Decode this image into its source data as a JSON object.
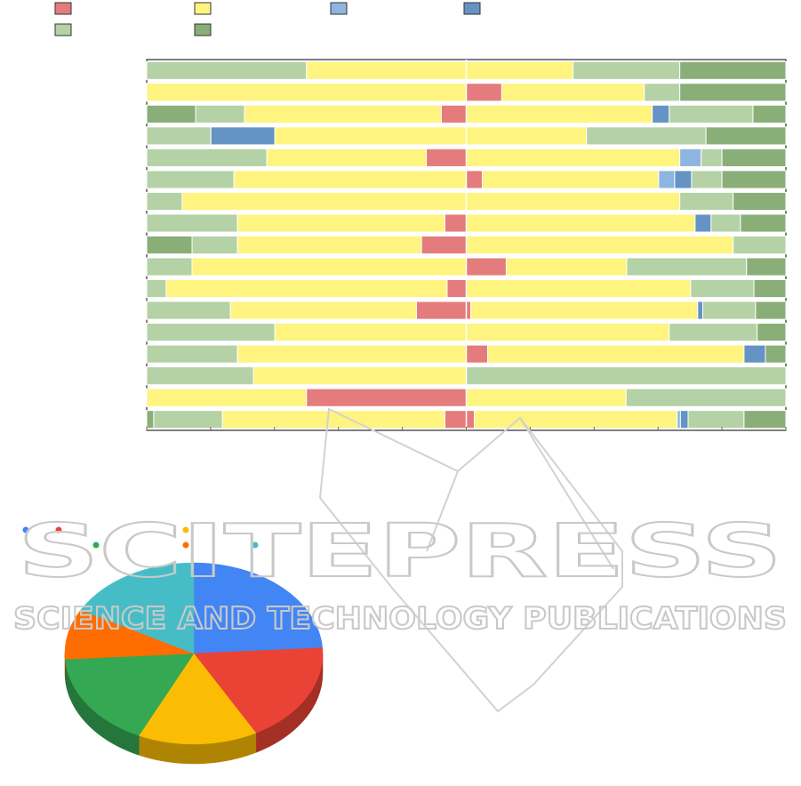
{
  "chart_data": [
    {
      "type": "bar",
      "stacked": true,
      "orientation": "horizontal",
      "diverging": true,
      "xlim": [
        -1,
        1
      ],
      "grid": false,
      "legend_position": "top-left",
      "series": [
        {
          "key": "s1",
          "color": "#e47c7d"
        },
        {
          "key": "s2",
          "color": "#fef47f"
        },
        {
          "key": "s3",
          "color": "#8eb5e0"
        },
        {
          "key": "s4",
          "color": "#6593c4"
        },
        {
          "key": "s5",
          "color": "#b5d1a6"
        },
        {
          "key": "s6",
          "color": "#8aae77"
        }
      ],
      "rows": [
        {
          "segments": [
            [
              "s5",
              -1.0
            ],
            [
              "s2",
              -0.5
            ],
            [
              "s2",
              0.0
            ],
            [
              "s5",
              0.334
            ],
            [
              "s6",
              0.668
            ],
            [
              "s6",
              1.0
            ]
          ]
        },
        {
          "segments": [
            [
              "s2",
              -1.0
            ],
            [
              "s1",
              0.0
            ],
            [
              "s2",
              0.111
            ],
            [
              "s5",
              0.557
            ],
            [
              "s6",
              0.668
            ],
            [
              "s6",
              1.0
            ]
          ]
        },
        {
          "segments": [
            [
              "s6",
              -1.0
            ],
            [
              "s5",
              -0.847
            ],
            [
              "s2",
              -0.694
            ],
            [
              "s1",
              -0.078
            ],
            [
              "s2",
              0.0
            ],
            [
              "s4",
              0.582
            ],
            [
              "s5",
              0.635
            ],
            [
              "s6",
              0.897
            ],
            [
              "s6",
              1.0
            ]
          ]
        },
        {
          "segments": [
            [
              "s5",
              -1.0
            ],
            [
              "s4",
              -0.799
            ],
            [
              "s2",
              -0.599
            ],
            [
              "s2",
              0.0
            ],
            [
              "s5",
              0.376
            ],
            [
              "s6",
              0.75
            ],
            [
              "s6",
              1.0
            ]
          ]
        },
        {
          "segments": [
            [
              "s5",
              -1.0
            ],
            [
              "s2",
              -0.624
            ],
            [
              "s1",
              -0.125
            ],
            [
              "s2",
              0.0
            ],
            [
              "s3",
              0.668
            ],
            [
              "s5",
              0.735
            ],
            [
              "s6",
              0.8
            ],
            [
              "s6",
              1.0
            ]
          ]
        },
        {
          "segments": [
            [
              "s5",
              -1.0
            ],
            [
              "s2",
              -0.727
            ],
            [
              "s1",
              0.0
            ],
            [
              "s2",
              0.05
            ],
            [
              "s3",
              0.602
            ],
            [
              "s4",
              0.652
            ],
            [
              "s5",
              0.705
            ],
            [
              "s6",
              0.8
            ],
            [
              "s6",
              1.0
            ]
          ]
        },
        {
          "segments": [
            [
              "s5",
              -1.0
            ],
            [
              "s2",
              -0.889
            ],
            [
              "s2",
              0.0
            ],
            [
              "s5",
              0.668
            ],
            [
              "s6",
              0.835
            ],
            [
              "s6",
              1.0
            ]
          ]
        },
        {
          "segments": [
            [
              "s5",
              -1.0
            ],
            [
              "s2",
              -0.716
            ],
            [
              "s1",
              -0.067
            ],
            [
              "s2",
              0.0
            ],
            [
              "s4",
              0.716
            ],
            [
              "s5",
              0.766
            ],
            [
              "s6",
              0.858
            ],
            [
              "s6",
              1.0
            ]
          ]
        },
        {
          "segments": [
            [
              "s6",
              -1.0
            ],
            [
              "s5",
              -0.858
            ],
            [
              "s2",
              -0.716
            ],
            [
              "s1",
              -0.14
            ],
            [
              "s2",
              0.0
            ],
            [
              "s5",
              0.835
            ],
            [
              "s5",
              1.0
            ]
          ]
        },
        {
          "segments": [
            [
              "s5",
              -1.0
            ],
            [
              "s2",
              -0.858
            ],
            [
              "s1",
              0.0
            ],
            [
              "s2",
              0.125
            ],
            [
              "s5",
              0.502
            ],
            [
              "s6",
              0.877
            ],
            [
              "s6",
              1.0
            ]
          ]
        },
        {
          "segments": [
            [
              "s5",
              -1.0
            ],
            [
              "s2",
              -0.939
            ],
            [
              "s1",
              -0.06
            ],
            [
              "s2",
              0.0
            ],
            [
              "s5",
              0.702
            ],
            [
              "s6",
              0.9
            ],
            [
              "s6",
              1.0
            ]
          ]
        },
        {
          "segments": [
            [
              "s5",
              -1.0
            ],
            [
              "s2",
              -0.738
            ],
            [
              "s1",
              -0.156
            ],
            [
              "s2",
              0.014
            ],
            [
              "s4",
              0.724
            ],
            [
              "s5",
              0.74
            ],
            [
              "s6",
              0.905
            ],
            [
              "s6",
              1.0
            ]
          ]
        },
        {
          "segments": [
            [
              "s5",
              -1.0
            ],
            [
              "s2",
              -0.599
            ],
            [
              "s2",
              0.0
            ],
            [
              "s5",
              0.635
            ],
            [
              "s6",
              0.91
            ],
            [
              "s6",
              1.0
            ]
          ]
        },
        {
          "segments": [
            [
              "s5",
              -1.0
            ],
            [
              "s2",
              -0.716
            ],
            [
              "s1",
              0.0
            ],
            [
              "s2",
              0.067
            ],
            [
              "s4",
              0.869
            ],
            [
              "s6",
              0.936
            ],
            [
              "s6",
              1.0
            ]
          ]
        },
        {
          "segments": [
            [
              "s5",
              -1.0
            ],
            [
              "s2",
              -0.666
            ],
            [
              "s5",
              0.0
            ],
            [
              "s5",
              1.0
            ]
          ]
        },
        {
          "segments": [
            [
              "s2",
              -1.0
            ],
            [
              "s1",
              -0.5
            ],
            [
              "s2",
              0.0
            ],
            [
              "s5",
              0.5
            ],
            [
              "s5",
              1.0
            ]
          ]
        },
        {
          "segments": [
            [
              "s6",
              -1.0
            ],
            [
              "s5",
              -0.978
            ],
            [
              "s2",
              -0.763
            ],
            [
              "s1",
              -0.067
            ],
            [
              "s2",
              0.025
            ],
            [
              "s3",
              0.66
            ],
            [
              "s4",
              0.67
            ],
            [
              "s5",
              0.694
            ],
            [
              "s6",
              0.869
            ],
            [
              "s6",
              1.0
            ]
          ]
        }
      ]
    },
    {
      "type": "pie",
      "style": "3d",
      "legend_position": "top",
      "slices": [
        {
          "key": "p1",
          "value": 24,
          "color": "#4285f4"
        },
        {
          "key": "p2",
          "value": 18,
          "color": "#ea4335"
        },
        {
          "key": "p3",
          "value": 15,
          "color": "#fbbc04"
        },
        {
          "key": "p4",
          "value": 17,
          "color": "#34a853"
        },
        {
          "key": "p5",
          "value": 9,
          "color": "#ff6d01"
        },
        {
          "key": "p6",
          "value": 17,
          "color": "#46bdc6"
        }
      ]
    }
  ],
  "watermark": {
    "line1": "SCITEPRESS",
    "line2": "SCIENCE AND TECHNOLOGY PUBLICATIONS",
    "color": "#c9c9c9"
  }
}
